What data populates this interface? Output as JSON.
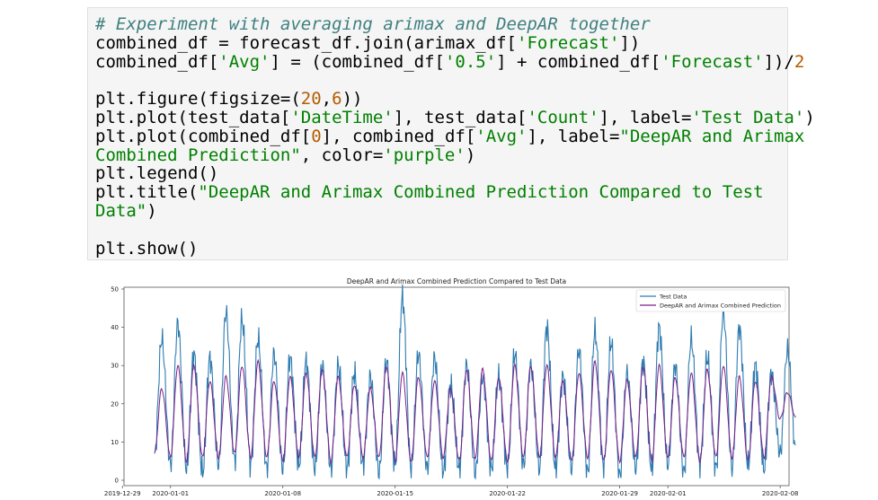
{
  "code": {
    "lines": [
      [
        {
          "t": "c",
          "v": "# Experiment with averaging arimax and DeepAR together"
        }
      ],
      [
        {
          "t": "p",
          "v": "combined_df = forecast_df.join(arimax_df["
        },
        {
          "t": "str",
          "v": "'Forecast'"
        },
        {
          "t": "p",
          "v": "])"
        }
      ],
      [
        {
          "t": "p",
          "v": "combined_df["
        },
        {
          "t": "str",
          "v": "'Avg'"
        },
        {
          "t": "p",
          "v": "] = (combined_df["
        },
        {
          "t": "str",
          "v": "'0.5'"
        },
        {
          "t": "p",
          "v": "] + combined_df["
        },
        {
          "t": "str",
          "v": "'Forecast'"
        },
        {
          "t": "p",
          "v": "])/"
        },
        {
          "t": "n",
          "v": "2"
        }
      ],
      [
        {
          "t": "p",
          "v": ""
        }
      ],
      [
        {
          "t": "p",
          "v": "plt.figure(figsize=("
        },
        {
          "t": "n",
          "v": "20"
        },
        {
          "t": "p",
          "v": ","
        },
        {
          "t": "n",
          "v": "6"
        },
        {
          "t": "p",
          "v": "))"
        }
      ],
      [
        {
          "t": "p",
          "v": "plt.plot(test_data["
        },
        {
          "t": "str",
          "v": "'DateTime'"
        },
        {
          "t": "p",
          "v": "], test_data["
        },
        {
          "t": "str",
          "v": "'Count'"
        },
        {
          "t": "p",
          "v": "], label="
        },
        {
          "t": "str",
          "v": "'Test Data'"
        },
        {
          "t": "p",
          "v": ")"
        }
      ],
      [
        {
          "t": "p",
          "v": "plt.plot(combined_df["
        },
        {
          "t": "n",
          "v": "0"
        },
        {
          "t": "p",
          "v": "], combined_df["
        },
        {
          "t": "str",
          "v": "'Avg'"
        },
        {
          "t": "p",
          "v": "], label="
        },
        {
          "t": "str",
          "v": "\"DeepAR and Arimax"
        }
      ],
      [
        {
          "t": "str",
          "v": "Combined Prediction\""
        },
        {
          "t": "p",
          "v": ", color="
        },
        {
          "t": "str",
          "v": "'purple'"
        },
        {
          "t": "p",
          "v": ")"
        }
      ],
      [
        {
          "t": "p",
          "v": "plt.legend()"
        }
      ],
      [
        {
          "t": "p",
          "v": "plt.title("
        },
        {
          "t": "str",
          "v": "\"DeepAR and Arimax Combined Prediction Compared to Test"
        }
      ],
      [
        {
          "t": "str",
          "v": "Data\""
        },
        {
          "t": "p",
          "v": ")"
        }
      ],
      [
        {
          "t": "p",
          "v": ""
        }
      ],
      [
        {
          "t": "p",
          "v": "plt.show()"
        }
      ]
    ]
  },
  "chart_data": {
    "type": "line",
    "title": "DeepAR and Arimax Combined Prediction Compared to Test Data",
    "xlabel": "",
    "ylabel": "",
    "xlim": [
      "2019-12-29",
      "2020-02-08"
    ],
    "ylim": [
      0,
      50
    ],
    "yticks": [
      0,
      10,
      20,
      30,
      40,
      50
    ],
    "xticks": [
      "2019-12-29",
      "2020-01-01",
      "2020-01-08",
      "2020-01-15",
      "2020-01-22",
      "2020-01-29",
      "2020-02-01",
      "2020-02-08"
    ],
    "legend_position": "top-right",
    "grid": false,
    "series": [
      {
        "name": "Test Data",
        "color": "#2e7bb0",
        "x": [
          "2019-12-31",
          "2020-01-01",
          "2020-01-02",
          "2020-01-03",
          "2020-01-04",
          "2020-01-05",
          "2020-01-06",
          "2020-01-07",
          "2020-01-08",
          "2020-01-09",
          "2020-01-10",
          "2020-01-11",
          "2020-01-12",
          "2020-01-13",
          "2020-01-14",
          "2020-01-15",
          "2020-01-16",
          "2020-01-17",
          "2020-01-18",
          "2020-01-19",
          "2020-01-20",
          "2020-01-21",
          "2020-01-22",
          "2020-01-23",
          "2020-01-24",
          "2020-01-25",
          "2020-01-26",
          "2020-01-27",
          "2020-01-28",
          "2020-01-29",
          "2020-01-30",
          "2020-01-31",
          "2020-02-01",
          "2020-02-02",
          "2020-02-03",
          "2020-02-04",
          "2020-02-05",
          "2020-02-06",
          "2020-02-07",
          "2020-02-08"
        ],
        "peaks": [
          37,
          41,
          33,
          32,
          44,
          42,
          37,
          33,
          32,
          31,
          30,
          30,
          28,
          27,
          31,
          48,
          33,
          32,
          25,
          30,
          27,
          27,
          33,
          30,
          40,
          27,
          34,
          39,
          36,
          28,
          31,
          40,
          30,
          37,
          32,
          44,
          40,
          30,
          28,
          34
        ],
        "troughs": [
          6,
          4,
          3,
          2,
          4,
          5,
          4,
          3,
          3,
          4,
          3,
          3,
          3,
          4,
          2,
          4,
          3,
          3,
          2,
          3,
          2,
          3,
          3,
          4,
          3,
          3,
          3,
          2,
          3,
          1,
          3,
          3,
          4,
          2,
          4,
          3,
          3,
          4,
          3,
          7
        ]
      },
      {
        "name": "DeepAR and Arimax Combined Prediction",
        "color": "#7b1f86",
        "x": [
          "2019-12-31",
          "2020-01-01",
          "2020-01-02",
          "2020-01-03",
          "2020-01-04",
          "2020-01-05",
          "2020-01-06",
          "2020-01-07",
          "2020-01-08",
          "2020-01-09",
          "2020-01-10",
          "2020-01-11",
          "2020-01-12",
          "2020-01-13",
          "2020-01-14",
          "2020-01-15",
          "2020-01-16",
          "2020-01-17",
          "2020-01-18",
          "2020-01-19",
          "2020-01-20",
          "2020-01-21",
          "2020-01-22",
          "2020-01-23",
          "2020-01-24",
          "2020-01-25",
          "2020-01-26",
          "2020-01-27",
          "2020-01-28",
          "2020-01-29",
          "2020-01-30",
          "2020-01-31",
          "2020-02-01",
          "2020-02-02",
          "2020-02-03",
          "2020-02-04",
          "2020-02-05",
          "2020-02-06",
          "2020-02-07",
          "2020-02-08"
        ],
        "peaks": [
          24,
          30,
          30,
          26,
          27,
          30,
          31,
          26,
          27,
          28,
          29,
          27,
          25,
          24,
          30,
          28,
          27,
          26,
          24,
          29,
          29,
          27,
          30,
          30,
          30,
          26,
          28,
          31,
          29,
          26,
          30,
          30,
          27,
          28,
          29,
          30,
          27,
          26,
          27,
          23
        ],
        "troughs": [
          7,
          6,
          5,
          6,
          6,
          7,
          6,
          6,
          5,
          6,
          6,
          5,
          6,
          6,
          6,
          5,
          5,
          6,
          6,
          5,
          6,
          5,
          5,
          6,
          6,
          6,
          5,
          6,
          5,
          5,
          6,
          5,
          6,
          6,
          5,
          6,
          6,
          5,
          6,
          16
        ]
      }
    ]
  }
}
